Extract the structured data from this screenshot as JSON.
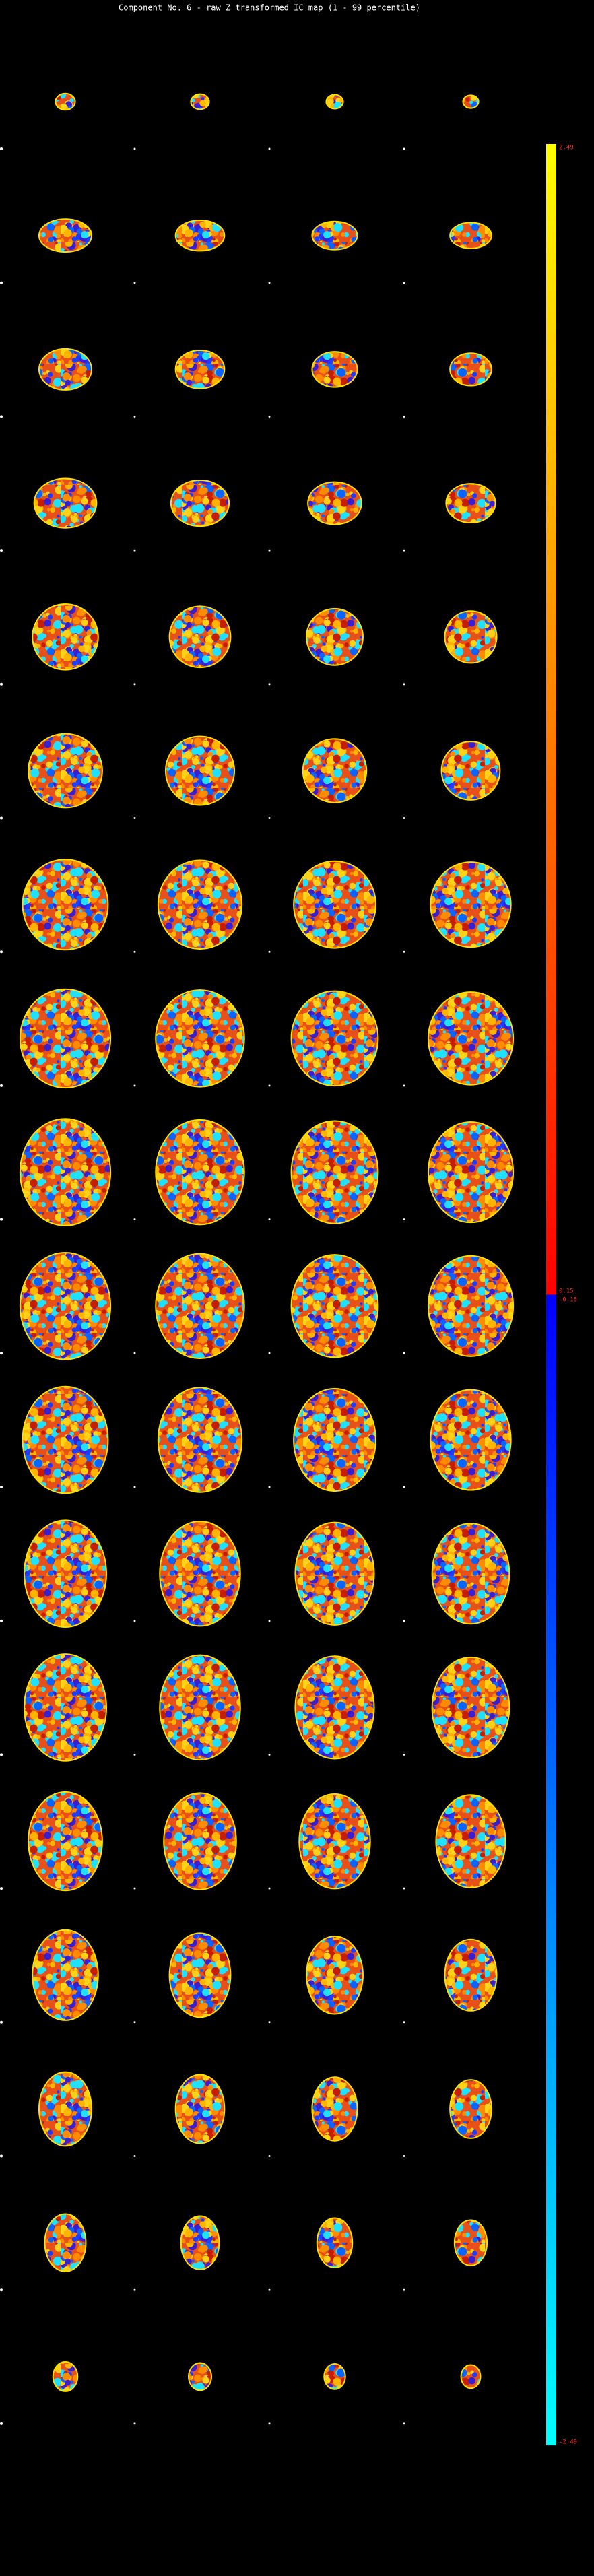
{
  "title": "Component No. 6 - raw Z transformed IC map (1 - 99 percentile)",
  "colorbar": {
    "max_label": "2.49",
    "upper_mid_label": "0.15",
    "lower_mid_label": "-0.15",
    "min_label": "-2.49"
  }
}
